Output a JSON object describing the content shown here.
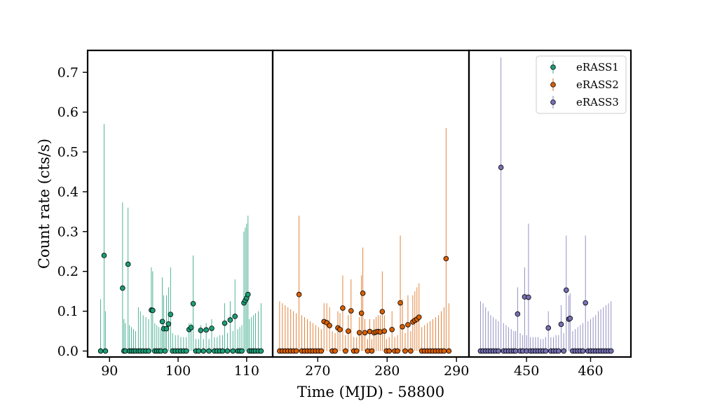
{
  "chart_data": {
    "type": "scatter",
    "title": "",
    "xlabel": "Time (MJD) - 58800",
    "ylabel": "Count rate (cts/s)",
    "ylim": [
      -0.015,
      0.755
    ],
    "yticks": [
      "0.0",
      "0.1",
      "0.2",
      "0.3",
      "0.4",
      "0.5",
      "0.6",
      "0.7"
    ],
    "legend_position": "top-right",
    "series": [
      {
        "name": "eRASS1",
        "color": "#1b9e77",
        "xlim": [
          86.8,
          113.8
        ],
        "xticks": [
          90,
          100,
          110
        ],
        "points": [
          [
            88.7,
            0.0,
            0.13
          ],
          [
            89.2,
            0.24,
            0.57
          ],
          [
            89.4,
            0.0,
            0.1
          ],
          [
            91.9,
            0.158,
            0.373
          ],
          [
            92.1,
            0.0,
            0.08
          ],
          [
            92.3,
            0.0,
            0.07
          ],
          [
            92.7,
            0.218,
            0.36
          ],
          [
            92.9,
            0.0,
            0.065
          ],
          [
            93.2,
            0.0,
            0.06
          ],
          [
            93.5,
            0.0,
            0.055
          ],
          [
            93.8,
            0.0,
            0.05
          ],
          [
            94.2,
            0.0,
            0.11
          ],
          [
            94.5,
            0.0,
            0.1
          ],
          [
            94.9,
            0.0,
            0.09
          ],
          [
            95.3,
            0.0,
            0.085
          ],
          [
            95.7,
            0.0,
            0.08
          ],
          [
            96.1,
            0.103,
            0.21
          ],
          [
            96.3,
            0.102,
            0.2
          ],
          [
            96.6,
            0.0,
            0.07
          ],
          [
            96.9,
            0.0,
            0.065
          ],
          [
            97.2,
            0.0,
            0.06
          ],
          [
            97.5,
            0.0,
            0.055
          ],
          [
            97.7,
            0.074,
            0.185
          ],
          [
            97.9,
            0.056,
            0.14
          ],
          [
            98.1,
            0.0,
            0.05
          ],
          [
            98.3,
            0.056,
            0.14
          ],
          [
            98.6,
            0.068,
            0.16
          ],
          [
            98.9,
            0.092,
            0.21
          ],
          [
            99.2,
            0.0,
            0.045
          ],
          [
            99.6,
            0.0,
            0.04
          ],
          [
            100.0,
            0.0,
            0.04
          ],
          [
            100.4,
            0.0,
            0.035
          ],
          [
            100.8,
            0.0,
            0.035
          ],
          [
            101.2,
            0.0,
            0.035
          ],
          [
            101.6,
            0.054,
            0.07
          ],
          [
            101.9,
            0.059,
            0.07
          ],
          [
            102.2,
            0.119,
            0.24
          ],
          [
            102.6,
            0.0,
            0.03
          ],
          [
            103.0,
            0.0,
            0.03
          ],
          [
            103.3,
            0.052,
            0.065
          ],
          [
            103.7,
            0.0,
            0.03
          ],
          [
            104.1,
            0.053,
            0.07
          ],
          [
            104.5,
            0.0,
            0.03
          ],
          [
            104.9,
            0.057,
            0.08
          ],
          [
            105.3,
            0.0,
            0.035
          ],
          [
            105.7,
            0.0,
            0.035
          ],
          [
            106.1,
            0.0,
            0.04
          ],
          [
            106.5,
            0.0,
            0.04
          ],
          [
            106.8,
            0.07,
            0.12
          ],
          [
            107.2,
            0.0,
            0.045
          ],
          [
            107.6,
            0.078,
            0.125
          ],
          [
            108.0,
            0.0,
            0.05
          ],
          [
            108.3,
            0.087,
            0.18
          ],
          [
            108.7,
            0.0,
            0.055
          ],
          [
            109.0,
            0.0,
            0.06
          ],
          [
            109.3,
            0.0,
            0.065
          ],
          [
            109.6,
            0.121,
            0.3
          ],
          [
            109.8,
            0.127,
            0.31
          ],
          [
            110.0,
            0.133,
            0.32
          ],
          [
            110.2,
            0.142,
            0.34
          ],
          [
            110.4,
            0.0,
            0.08
          ],
          [
            110.7,
            0.0,
            0.085
          ],
          [
            111.0,
            0.0,
            0.09
          ],
          [
            111.3,
            0.0,
            0.095
          ],
          [
            111.7,
            0.0,
            0.1
          ],
          [
            112.1,
            0.0,
            0.12
          ]
        ]
      },
      {
        "name": "eRASS2",
        "color": "#d95f02",
        "xlim": [
          263.5,
          291.8
        ],
        "xticks": [
          270,
          280,
          290
        ],
        "points": [
          [
            264.5,
            0.0,
            0.125
          ],
          [
            264.9,
            0.0,
            0.12
          ],
          [
            265.3,
            0.0,
            0.115
          ],
          [
            265.7,
            0.0,
            0.11
          ],
          [
            266.1,
            0.0,
            0.105
          ],
          [
            266.5,
            0.0,
            0.1
          ],
          [
            266.9,
            0.0,
            0.095
          ],
          [
            267.3,
            0.142,
            0.34
          ],
          [
            267.7,
            0.0,
            0.09
          ],
          [
            268.1,
            0.0,
            0.085
          ],
          [
            268.5,
            0.0,
            0.08
          ],
          [
            268.9,
            0.0,
            0.075
          ],
          [
            269.3,
            0.0,
            0.07
          ],
          [
            269.7,
            0.0,
            0.065
          ],
          [
            270.1,
            0.0,
            0.06
          ],
          [
            270.5,
            0.0,
            0.055
          ],
          [
            270.9,
            0.074,
            0.12
          ],
          [
            271.3,
            0.071,
            0.12
          ],
          [
            271.7,
            0.064,
            0.11
          ],
          [
            272.1,
            0.0,
            0.05
          ],
          [
            272.5,
            0.0,
            0.045
          ],
          [
            272.9,
            0.058,
            0.1
          ],
          [
            273.2,
            0.054,
            0.095
          ],
          [
            273.6,
            0.108,
            0.19
          ],
          [
            274.0,
            0.0,
            0.04
          ],
          [
            274.4,
            0.05,
            0.09
          ],
          [
            274.8,
            0.101,
            0.18
          ],
          [
            275.2,
            0.0,
            0.035
          ],
          [
            275.6,
            0.0,
            0.035
          ],
          [
            276.0,
            0.046,
            0.085
          ],
          [
            276.3,
            0.095,
            0.19
          ],
          [
            276.5,
            0.145,
            0.26
          ],
          [
            276.8,
            0.046,
            0.08
          ],
          [
            277.2,
            0.0,
            0.03
          ],
          [
            277.5,
            0.049,
            0.08
          ],
          [
            277.8,
            0.0,
            0.03
          ],
          [
            278.1,
            0.046,
            0.08
          ],
          [
            278.4,
            0.048,
            0.085
          ],
          [
            278.7,
            0.049,
            0.09
          ],
          [
            279.0,
            0.048,
            0.09
          ],
          [
            279.3,
            0.099,
            0.2
          ],
          [
            279.6,
            0.05,
            0.09
          ],
          [
            279.9,
            0.0,
            0.03
          ],
          [
            280.3,
            0.0,
            0.035
          ],
          [
            280.7,
            0.054,
            0.1
          ],
          [
            281.1,
            0.0,
            0.035
          ],
          [
            281.5,
            0.0,
            0.04
          ],
          [
            281.9,
            0.121,
            0.29
          ],
          [
            282.2,
            0.061,
            0.13
          ],
          [
            282.6,
            0.0,
            0.045
          ],
          [
            283.0,
            0.066,
            0.14
          ],
          [
            283.4,
            0.0,
            0.05
          ],
          [
            283.7,
            0.073,
            0.14
          ],
          [
            284.0,
            0.077,
            0.15
          ],
          [
            284.3,
            0.08,
            0.16
          ],
          [
            284.6,
            0.085,
            0.17
          ],
          [
            285.0,
            0.0,
            0.06
          ],
          [
            285.4,
            0.0,
            0.065
          ],
          [
            285.8,
            0.0,
            0.07
          ],
          [
            286.2,
            0.0,
            0.075
          ],
          [
            286.6,
            0.0,
            0.08
          ],
          [
            287.0,
            0.0,
            0.085
          ],
          [
            287.4,
            0.0,
            0.09
          ],
          [
            287.8,
            0.0,
            0.1
          ],
          [
            288.2,
            0.0,
            0.11
          ],
          [
            288.5,
            0.232,
            0.56
          ],
          [
            288.9,
            0.0,
            0.12
          ]
        ]
      },
      {
        "name": "eRASS3",
        "color": "#7570b3",
        "xlim": [
          441.0,
          466.3
        ],
        "xticks": [
          450,
          460
        ],
        "points": [
          [
            442.8,
            0.0,
            0.125
          ],
          [
            443.2,
            0.0,
            0.12
          ],
          [
            443.6,
            0.0,
            0.11
          ],
          [
            444.0,
            0.0,
            0.1
          ],
          [
            444.4,
            0.0,
            0.09
          ],
          [
            444.8,
            0.0,
            0.085
          ],
          [
            445.2,
            0.0,
            0.08
          ],
          [
            445.6,
            0.0,
            0.075
          ],
          [
            446.0,
            0.461,
            0.737
          ],
          [
            446.4,
            0.0,
            0.07
          ],
          [
            446.8,
            0.0,
            0.065
          ],
          [
            447.2,
            0.0,
            0.06
          ],
          [
            447.6,
            0.0,
            0.055
          ],
          [
            448.0,
            0.0,
            0.05
          ],
          [
            448.3,
            0.0,
            0.05
          ],
          [
            448.6,
            0.093,
            0.16
          ],
          [
            449.0,
            0.0,
            0.045
          ],
          [
            449.4,
            0.0,
            0.04
          ],
          [
            449.7,
            0.136,
            0.21
          ],
          [
            450.0,
            0.0,
            0.04
          ],
          [
            450.3,
            0.135,
            0.32
          ],
          [
            450.6,
            0.0,
            0.035
          ],
          [
            451.0,
            0.0,
            0.035
          ],
          [
            451.4,
            0.0,
            0.035
          ],
          [
            451.8,
            0.0,
            0.035
          ],
          [
            452.2,
            0.0,
            0.03
          ],
          [
            452.6,
            0.0,
            0.03
          ],
          [
            453.0,
            0.0,
            0.035
          ],
          [
            453.4,
            0.058,
            0.1
          ],
          [
            453.8,
            0.0,
            0.035
          ],
          [
            454.2,
            0.0,
            0.035
          ],
          [
            454.6,
            0.0,
            0.04
          ],
          [
            455.0,
            0.0,
            0.04
          ],
          [
            455.4,
            0.067,
            0.115
          ],
          [
            455.8,
            0.0,
            0.045
          ],
          [
            456.2,
            0.153,
            0.29
          ],
          [
            456.6,
            0.08,
            0.14
          ],
          [
            456.8,
            0.082,
            0.145
          ],
          [
            457.2,
            0.0,
            0.05
          ],
          [
            457.6,
            0.0,
            0.055
          ],
          [
            458.0,
            0.0,
            0.06
          ],
          [
            458.4,
            0.0,
            0.065
          ],
          [
            458.8,
            0.0,
            0.07
          ],
          [
            459.2,
            0.121,
            0.29
          ],
          [
            459.6,
            0.0,
            0.075
          ],
          [
            460.0,
            0.0,
            0.08
          ],
          [
            460.4,
            0.0,
            0.085
          ],
          [
            460.8,
            0.0,
            0.09
          ],
          [
            461.2,
            0.0,
            0.1
          ],
          [
            461.6,
            0.0,
            0.105
          ],
          [
            462.0,
            0.0,
            0.11
          ],
          [
            462.4,
            0.0,
            0.115
          ],
          [
            462.8,
            0.0,
            0.12
          ],
          [
            463.2,
            0.0,
            0.125
          ]
        ]
      }
    ]
  }
}
